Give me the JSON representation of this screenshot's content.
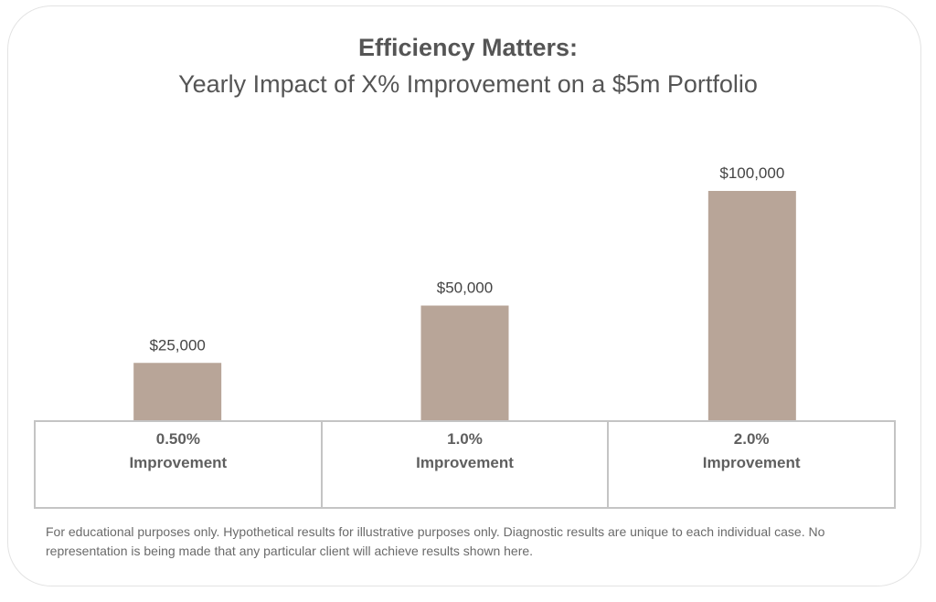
{
  "chart_data": {
    "type": "bar",
    "title": "Efficiency Matters:",
    "subtitle": "Yearly Impact of X% Improvement on a $5m Portfolio",
    "categories": [
      {
        "line1": "0.50%",
        "line2": "Improvement"
      },
      {
        "line1": "1.0%",
        "line2": "Improvement"
      },
      {
        "line1": "2.0%",
        "line2": "Improvement"
      }
    ],
    "values": [
      25000,
      50000,
      100000
    ],
    "data_labels": [
      "$25,000",
      "$50,000",
      "$100,000"
    ],
    "ylim": [
      0,
      100000
    ],
    "xlabel": "",
    "ylabel": "",
    "grid": false,
    "bar_color": "#b8a598"
  },
  "footnote": "For educational purposes only. Hypothetical results for illustrative purposes only. Diagnostic results are unique to each individual case. No representation is being made that any particular client will achieve results shown here."
}
